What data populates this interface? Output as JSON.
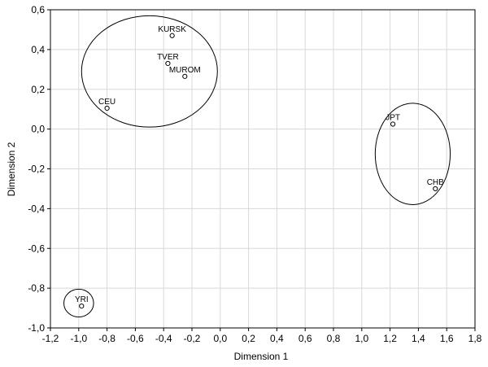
{
  "chart_data": {
    "type": "scatter",
    "title": "",
    "xlabel": "Dimension 1",
    "ylabel": "Dimension 2",
    "xlim": [
      -1.2,
      1.8
    ],
    "ylim": [
      -1.0,
      0.6
    ],
    "grid": true,
    "xticks": [
      -1.2,
      -1.0,
      -0.8,
      -0.6,
      -0.4,
      -0.2,
      0.0,
      0.2,
      0.4,
      0.6,
      0.8,
      1.0,
      1.2,
      1.4,
      1.6,
      1.8
    ],
    "xtick_labels": [
      "-1,2",
      "-1,0",
      "-0,8",
      "-0,6",
      "-0,4",
      "-0,2",
      "0,0",
      "0,2",
      "0,4",
      "0,6",
      "0,8",
      "1,0",
      "1,2",
      "1,4",
      "1,6",
      "1,8"
    ],
    "yticks": [
      0.6,
      0.4,
      0.2,
      0.0,
      -0.2,
      -0.4,
      -0.6,
      -0.8,
      -1.0
    ],
    "ytick_labels": [
      "0,6",
      "0,4",
      "0,2",
      "0,0",
      "-0,2",
      "-0,4",
      "-0,6",
      "-0,8",
      "-1,0"
    ],
    "points": [
      {
        "label": "KURSK",
        "x": -0.34,
        "y": 0.47
      },
      {
        "label": "TVER",
        "x": -0.37,
        "y": 0.33
      },
      {
        "label": "MUROM",
        "x": -0.25,
        "y": 0.265
      },
      {
        "label": "CEU",
        "x": -0.8,
        "y": 0.105
      },
      {
        "label": "JPT",
        "x": 1.22,
        "y": 0.025
      },
      {
        "label": "CHB",
        "x": 1.52,
        "y": -0.3
      },
      {
        "label": "YRI",
        "x": -0.98,
        "y": -0.89
      }
    ],
    "clusters": [
      {
        "cx": -0.5,
        "cy": 0.29,
        "rx": 0.48,
        "ry": 0.28
      },
      {
        "cx": 1.36,
        "cy": -0.125,
        "rx": 0.265,
        "ry": 0.255
      },
      {
        "cx": -1.0,
        "cy": -0.875,
        "rx": 0.105,
        "ry": 0.07
      }
    ]
  }
}
